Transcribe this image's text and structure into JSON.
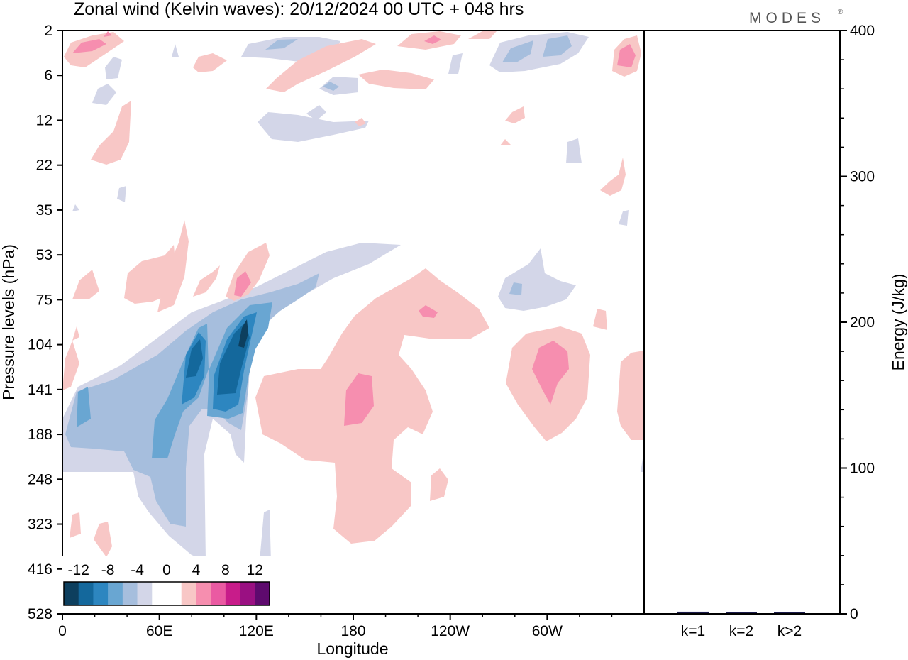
{
  "title": "Zonal wind (Kelvin waves):  20/12/2024  00 UTC  + 048 hrs",
  "logo": "MODES",
  "logo_mark": "®",
  "chart_data": [
    {
      "type": "heatmap",
      "xlabel": "Longitude",
      "ylabel": "Pressure levels (hPa)",
      "x_ticks": [
        "0",
        "60E",
        "120E",
        "180",
        "120W",
        "60W"
      ],
      "x_tick_degrees": [
        0,
        60,
        120,
        180,
        240,
        300
      ],
      "xlim": [
        0,
        360
      ],
      "y_ticks": [
        "2",
        "6",
        "12",
        "22",
        "35",
        "53",
        "75",
        "104",
        "141",
        "188",
        "248",
        "323",
        "416",
        "528"
      ],
      "colorbar": {
        "labels": [
          "-12",
          "-8",
          "-4",
          "0",
          "4",
          "8",
          "12"
        ],
        "colors": [
          "#0d3f5e",
          "#14689c",
          "#2d86c0",
          "#69a6d2",
          "#a6bedd",
          "#d3d6e8",
          "#ffffff",
          "#ffffff",
          "#f8c7c6",
          "#f68eaf",
          "#ea5aa2",
          "#c81c8a",
          "#9a1082",
          "#5e0a6e"
        ]
      },
      "features": [
        {
          "sign": "negative",
          "lon": [
            0,
            150
          ],
          "hPa": [
            75,
            416
          ],
          "peak": -12,
          "peak_lon": 110,
          "peak_hPa": 104
        },
        {
          "sign": "negative",
          "lon": [
            140,
            210
          ],
          "hPa": [
            53,
            75
          ],
          "peak": -4
        },
        {
          "sign": "positive",
          "lon": [
            120,
            260
          ],
          "hPa": [
            75,
            323
          ],
          "peak": 8,
          "peak_lon": 180,
          "peak_hPa": 141
        },
        {
          "sign": "positive",
          "lon": [
            280,
            320
          ],
          "hPa": [
            104,
            188
          ],
          "peak": 8,
          "peak_lon": 300,
          "peak_hPa": 120
        },
        {
          "sign": "negative",
          "lon": [
            270,
            300
          ],
          "hPa": [
            53,
            75
          ],
          "peak": -8
        },
        {
          "sign": "positive",
          "lon": [
            30,
            130
          ],
          "hPa": [
            35,
            75
          ],
          "peak": 8,
          "peak_lon": 110,
          "peak_hPa": 60
        },
        {
          "sign": "negative",
          "lon": [
            270,
            320
          ],
          "hPa": [
            2,
            6
          ],
          "peak": -8
        },
        {
          "sign": "positive",
          "lon": [
            0,
            35
          ],
          "hPa": [
            2,
            6
          ],
          "peak": 8
        },
        {
          "sign": "positive",
          "lon": [
            340,
            360
          ],
          "hPa": [
            2,
            6
          ],
          "peak": 8
        }
      ]
    },
    {
      "type": "bar",
      "categories": [
        "k=1",
        "k=2",
        "k>2"
      ],
      "values": [
        1.0,
        0.6,
        0.5
      ],
      "ylabel": "Energy (J/kg)",
      "ylim": [
        0,
        400
      ],
      "y_ticks": [
        "0",
        "100",
        "200",
        "300",
        "400"
      ],
      "bar_color": "#1a1a4a"
    }
  ]
}
